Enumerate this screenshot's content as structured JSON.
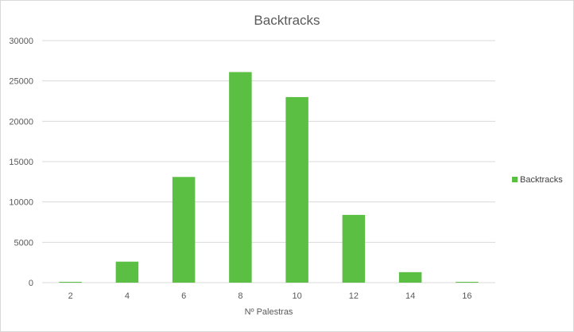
{
  "chart_data": {
    "type": "bar",
    "title": "Backtracks",
    "xlabel": "Nº Palestras",
    "ylabel": "",
    "categories": [
      "2",
      "4",
      "6",
      "8",
      "10",
      "12",
      "14",
      "16"
    ],
    "series": [
      {
        "name": "Backtracks",
        "values": [
          100,
          2600,
          13100,
          26100,
          23000,
          8400,
          1300,
          100
        ],
        "color": "#5bbf44"
      }
    ],
    "ylim": [
      0,
      30000
    ],
    "yticks": [
      "0",
      "5000",
      "10000",
      "15000",
      "20000",
      "25000",
      "30000"
    ],
    "grid": true,
    "legend_position": "right"
  }
}
